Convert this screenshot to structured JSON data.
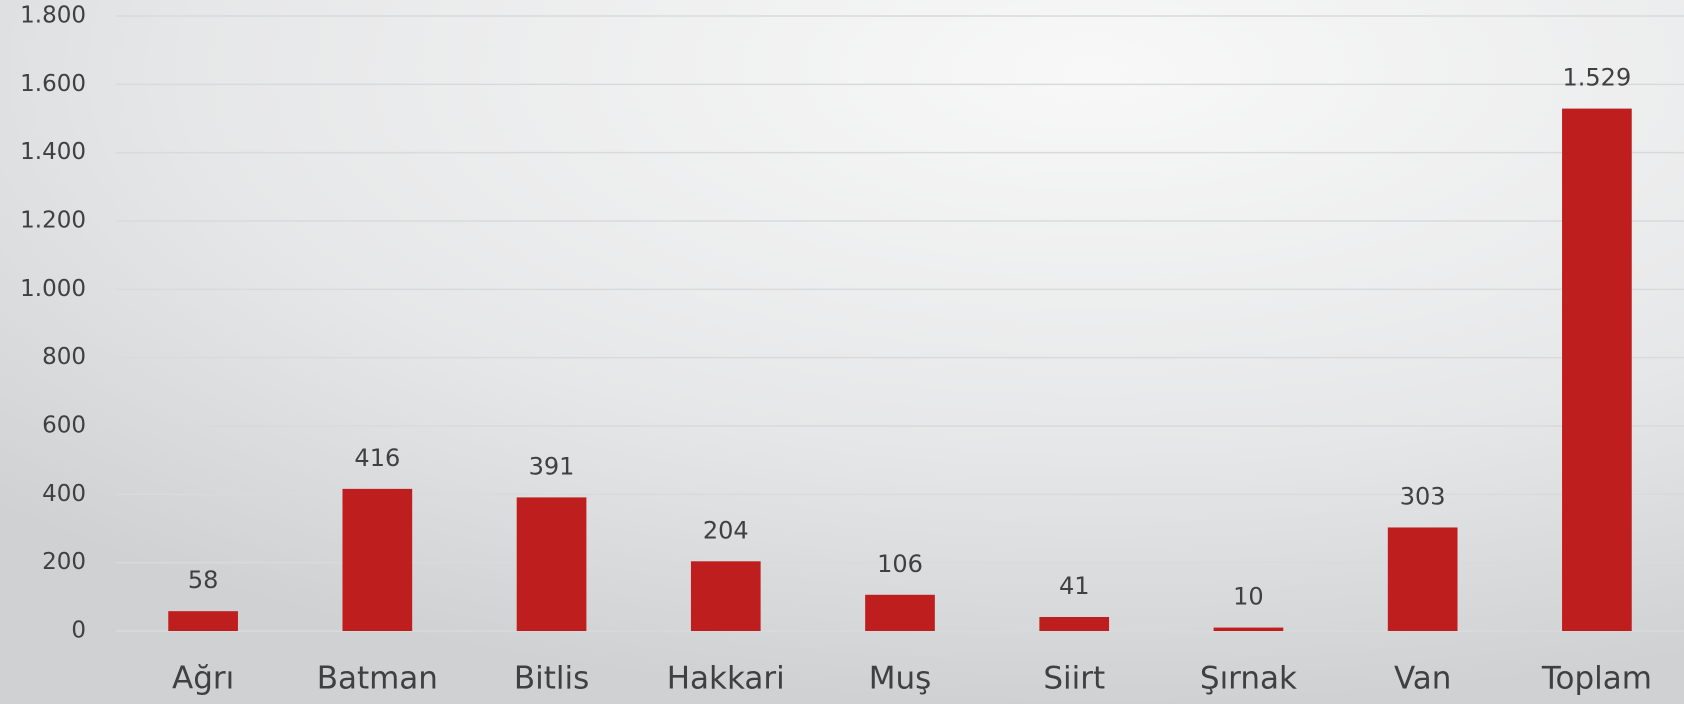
{
  "chart_data": {
    "type": "bar",
    "categories": [
      "Ağrı",
      "Batman",
      "Bitlis",
      "Hakkari",
      "Muş",
      "Siirt",
      "Şırnak",
      "Van",
      "Toplam"
    ],
    "values": [
      58,
      416,
      391,
      204,
      106,
      41,
      10,
      303,
      1529
    ],
    "value_labels": [
      "58",
      "416",
      "391",
      "204",
      "106",
      "41",
      "10",
      "303",
      "1.529"
    ],
    "color": "#be1e1e",
    "ylim": [
      0,
      1800
    ],
    "yticks": [
      0,
      200,
      400,
      600,
      800,
      {
        "value": 1000,
        "label": "1.000"
      },
      {
        "value": 1200,
        "label": "1.200"
      },
      {
        "value": 1400,
        "label": "1.400"
      },
      {
        "value": 1600,
        "label": "1.600"
      },
      {
        "value": 1800,
        "label": "1.800"
      }
    ],
    "grid": true
  }
}
